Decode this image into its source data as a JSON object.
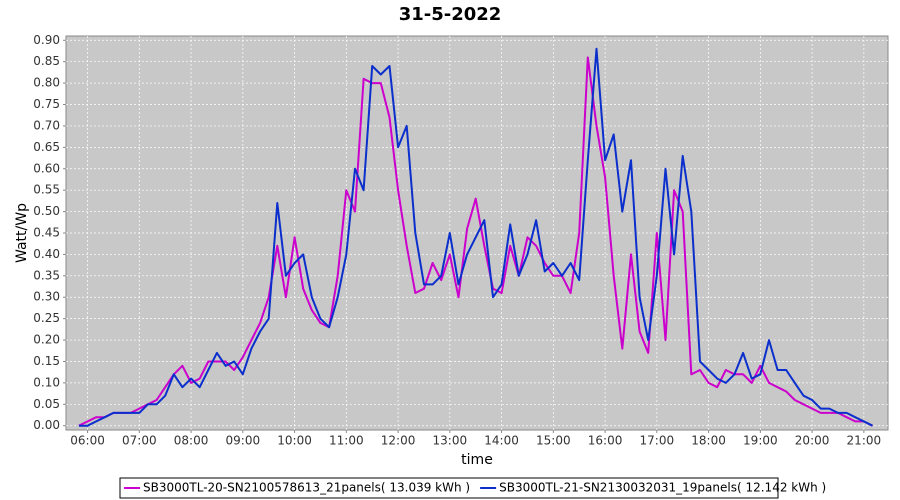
{
  "chart_data": {
    "type": "line",
    "title": "31-5-2022",
    "x_label": "time",
    "y_label": "Watt/Wp",
    "x": [
      "05:50",
      "06:00",
      "06:10",
      "06:20",
      "06:30",
      "06:40",
      "06:50",
      "07:00",
      "07:10",
      "07:20",
      "07:30",
      "07:40",
      "07:50",
      "08:00",
      "08:10",
      "08:20",
      "08:30",
      "08:40",
      "08:50",
      "09:00",
      "09:10",
      "09:20",
      "09:30",
      "09:40",
      "09:50",
      "10:00",
      "10:10",
      "10:20",
      "10:30",
      "10:40",
      "10:50",
      "11:00",
      "11:10",
      "11:20",
      "11:30",
      "11:40",
      "11:50",
      "12:00",
      "12:10",
      "12:20",
      "12:30",
      "12:40",
      "12:50",
      "13:00",
      "13:10",
      "13:20",
      "13:30",
      "13:40",
      "13:50",
      "14:00",
      "14:10",
      "14:20",
      "14:30",
      "14:40",
      "14:50",
      "15:00",
      "15:10",
      "15:20",
      "15:30",
      "15:40",
      "15:50",
      "16:00",
      "16:10",
      "16:20",
      "16:30",
      "16:40",
      "16:50",
      "17:00",
      "17:10",
      "17:20",
      "17:30",
      "17:40",
      "17:50",
      "18:00",
      "18:10",
      "18:20",
      "18:30",
      "18:40",
      "18:50",
      "19:00",
      "19:10",
      "19:20",
      "19:30",
      "19:40",
      "19:50",
      "20:00",
      "20:10",
      "20:20",
      "20:30",
      "20:40",
      "20:50",
      "21:00",
      "21:10"
    ],
    "series": [
      {
        "name": "SB3000TL-20-SN2100578613_21panels( 13.039 kWh )",
        "color": "#cc00cc",
        "values": [
          0.0,
          0.01,
          0.02,
          0.02,
          0.03,
          0.03,
          0.03,
          0.04,
          0.05,
          0.06,
          0.09,
          0.12,
          0.14,
          0.1,
          0.11,
          0.15,
          0.15,
          0.15,
          0.13,
          0.16,
          0.2,
          0.24,
          0.3,
          0.42,
          0.3,
          0.44,
          0.32,
          0.27,
          0.24,
          0.23,
          0.35,
          0.55,
          0.5,
          0.81,
          0.8,
          0.8,
          0.72,
          0.55,
          0.42,
          0.31,
          0.32,
          0.38,
          0.34,
          0.4,
          0.3,
          0.46,
          0.53,
          0.42,
          0.32,
          0.31,
          0.42,
          0.35,
          0.44,
          0.42,
          0.38,
          0.35,
          0.35,
          0.31,
          0.45,
          0.86,
          0.7,
          0.58,
          0.35,
          0.18,
          0.4,
          0.22,
          0.17,
          0.45,
          0.2,
          0.55,
          0.5,
          0.12,
          0.13,
          0.1,
          0.09,
          0.13,
          0.12,
          0.12,
          0.1,
          0.14,
          0.1,
          0.09,
          0.08,
          0.06,
          0.05,
          0.04,
          0.03,
          0.03,
          0.03,
          0.02,
          0.01,
          0.01,
          0.0
        ]
      },
      {
        "name": "SB3000TL-21-SN2130032031_19panels( 12.142 kWh )",
        "color": "#0b2fcc",
        "values": [
          0.0,
          0.0,
          0.01,
          0.02,
          0.03,
          0.03,
          0.03,
          0.03,
          0.05,
          0.05,
          0.07,
          0.12,
          0.09,
          0.11,
          0.09,
          0.13,
          0.17,
          0.14,
          0.15,
          0.12,
          0.18,
          0.22,
          0.25,
          0.52,
          0.35,
          0.38,
          0.4,
          0.3,
          0.25,
          0.23,
          0.3,
          0.4,
          0.6,
          0.55,
          0.84,
          0.82,
          0.84,
          0.65,
          0.7,
          0.45,
          0.33,
          0.33,
          0.35,
          0.45,
          0.33,
          0.4,
          0.44,
          0.48,
          0.3,
          0.33,
          0.47,
          0.35,
          0.4,
          0.48,
          0.36,
          0.38,
          0.35,
          0.38,
          0.34,
          0.62,
          0.88,
          0.62,
          0.68,
          0.5,
          0.62,
          0.3,
          0.2,
          0.35,
          0.6,
          0.4,
          0.63,
          0.5,
          0.15,
          0.13,
          0.11,
          0.1,
          0.12,
          0.17,
          0.11,
          0.12,
          0.2,
          0.13,
          0.13,
          0.1,
          0.07,
          0.06,
          0.04,
          0.04,
          0.03,
          0.03,
          0.02,
          0.01,
          0.0
        ]
      }
    ],
    "xlim": [
      "05:35",
      "21:28"
    ],
    "xticks": [
      "06:00",
      "07:00",
      "08:00",
      "09:00",
      "10:00",
      "11:00",
      "12:00",
      "13:00",
      "14:00",
      "15:00",
      "16:00",
      "17:00",
      "18:00",
      "19:00",
      "20:00",
      "21:00"
    ],
    "ylim": [
      -0.01,
      0.91
    ],
    "yticks": [
      {
        "value": 0,
        "label": "0.00"
      },
      {
        "value": 0.05,
        "label": "0.05"
      },
      {
        "value": 0.1,
        "label": "0.10"
      },
      {
        "value": 0.15,
        "label": "0.15"
      },
      {
        "value": 0.2,
        "label": "0.20"
      },
      {
        "value": 0.25,
        "label": "0.25"
      },
      {
        "value": 0.3,
        "label": "0.30"
      },
      {
        "value": 0.35,
        "label": "0.35"
      },
      {
        "value": 0.4,
        "label": "0.40"
      },
      {
        "value": 0.45,
        "label": "0.45"
      },
      {
        "value": 0.5,
        "label": "0.50"
      },
      {
        "value": 0.55,
        "label": "0.55"
      },
      {
        "value": 0.6,
        "label": "0.60"
      },
      {
        "value": 0.65,
        "label": "0.65"
      },
      {
        "value": 0.7,
        "label": "0.70"
      },
      {
        "value": 0.75,
        "label": "0.75"
      },
      {
        "value": 0.8,
        "label": "0.80"
      },
      {
        "value": 0.85,
        "label": "0.85"
      },
      {
        "value": 0.9,
        "label": "0.90"
      }
    ],
    "grid": true
  }
}
